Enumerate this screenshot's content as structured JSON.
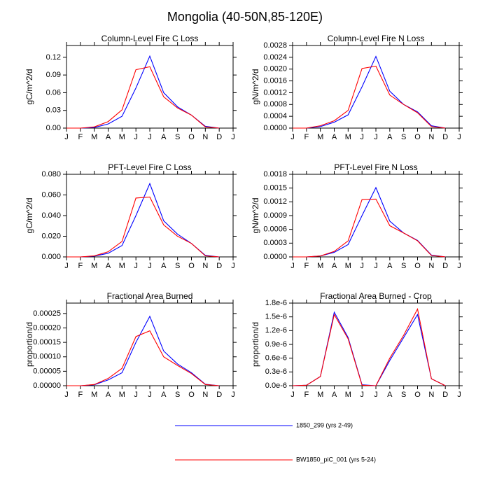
{
  "title": "Mongolia (40-50N,85-120E)",
  "legend": {
    "position": "bottom",
    "entries": [
      {
        "name": "1850_299 (yrs 2-49)",
        "color": "#0000ff"
      },
      {
        "name": "BW1850_piC_001 (yrs 5-24)",
        "color": "#ff0000"
      }
    ]
  },
  "chart_data": [
    {
      "type": "line",
      "title": "Column-Level Fire C Loss",
      "ylabel": "gC/m^2/d",
      "categories": [
        "J",
        "F",
        "M",
        "A",
        "M",
        "J",
        "J",
        "A",
        "S",
        "O",
        "N",
        "D",
        "J"
      ],
      "ylim": [
        0,
        0.14
      ],
      "yticks": [
        {
          "value": 0,
          "label": "0.00"
        },
        0.03,
        0.06,
        0.09,
        0.12
      ],
      "series": [
        {
          "color": "#0000ff",
          "values": [
            0,
            0,
            0.001,
            0.007,
            0.02,
            0.068,
            0.122,
            0.06,
            0.036,
            0.022,
            0.003,
            0,
            null
          ]
        },
        {
          "color": "#ff0000",
          "values": [
            0,
            0,
            0.002,
            0.011,
            0.031,
            0.099,
            0.104,
            0.053,
            0.034,
            0.022,
            0.002,
            0,
            null
          ]
        }
      ]
    },
    {
      "type": "line",
      "title": "Column-Level Fire N Loss",
      "ylabel": "gN/m^2/d",
      "categories": [
        "J",
        "F",
        "M",
        "A",
        "M",
        "J",
        "J",
        "A",
        "S",
        "O",
        "N",
        "D",
        "J"
      ],
      "ylim": [
        0,
        0.0028
      ],
      "yticks": [
        {
          "value": 0,
          "label": "0.0000"
        },
        0.0004,
        0.0008,
        0.0012,
        0.0016,
        {
          "value": 0.002,
          "label": "0.0020"
        },
        0.0024,
        0.0028
      ],
      "series": [
        {
          "color": "#0000ff",
          "values": [
            0,
            0,
            5e-05,
            0.0002,
            0.00045,
            0.0014,
            0.00243,
            0.00125,
            0.0008,
            0.00055,
            8e-05,
            0,
            null
          ]
        },
        {
          "color": "#ff0000",
          "values": [
            0,
            0,
            8e-05,
            0.00025,
            0.0006,
            0.00202,
            0.0021,
            0.00112,
            0.0008,
            0.00052,
            5e-05,
            0,
            null
          ]
        }
      ]
    },
    {
      "type": "line",
      "title": "PFT-Level Fire C Loss",
      "ylabel": "gC/m^2/d",
      "categories": [
        "J",
        "F",
        "M",
        "A",
        "M",
        "J",
        "J",
        "A",
        "S",
        "O",
        "N",
        "D",
        "J"
      ],
      "ylim": [
        0,
        0.08
      ],
      "yticks": [
        {
          "value": 0,
          "label": "0.000"
        },
        {
          "value": 0.02,
          "label": "0.020"
        },
        {
          "value": 0.04,
          "label": "0.040"
        },
        {
          "value": 0.06,
          "label": "0.060"
        },
        {
          "value": 0.08,
          "label": "0.080"
        }
      ],
      "series": [
        {
          "color": "#0000ff",
          "values": [
            0,
            0,
            0.0007,
            0.0035,
            0.011,
            0.04,
            0.071,
            0.035,
            0.022,
            0.013,
            0.0015,
            0,
            null
          ]
        },
        {
          "color": "#ff0000",
          "values": [
            0,
            0,
            0.001,
            0.005,
            0.015,
            0.057,
            0.058,
            0.031,
            0.02,
            0.013,
            0.001,
            0,
            null
          ]
        }
      ]
    },
    {
      "type": "line",
      "title": "PFT-Level Fire N Loss",
      "ylabel": "gN/m^2/d",
      "categories": [
        "J",
        "F",
        "M",
        "A",
        "M",
        "J",
        "J",
        "A",
        "S",
        "O",
        "N",
        "D",
        "J"
      ],
      "ylim": [
        0,
        0.0018
      ],
      "yticks": [
        {
          "value": 0,
          "label": "0.0000"
        },
        0.0003,
        0.0006,
        0.0009,
        0.0012,
        0.0015,
        0.0018
      ],
      "series": [
        {
          "color": "#0000ff",
          "values": [
            0,
            0,
            2e-05,
            0.0001,
            0.00027,
            0.0009,
            0.00151,
            0.00078,
            0.00052,
            0.00036,
            4e-05,
            0,
            null
          ]
        },
        {
          "color": "#ff0000",
          "values": [
            0,
            0,
            2e-05,
            0.00012,
            0.00035,
            0.00125,
            0.00126,
            0.00068,
            0.00052,
            0.00035,
            3e-05,
            0,
            null
          ]
        }
      ]
    },
    {
      "type": "line",
      "title": "Fractional Area Burned",
      "ylabel": "proportion/d",
      "categories": [
        "J",
        "F",
        "M",
        "A",
        "M",
        "J",
        "J",
        "A",
        "S",
        "O",
        "N",
        "D",
        "J"
      ],
      "ylim": [
        0,
        0.000286
      ],
      "yticks": [
        {
          "value": 0,
          "label": "0.00000"
        },
        5e-05,
        {
          "value": 0.0001,
          "label": "0.00010"
        },
        0.00015,
        {
          "value": 0.0002,
          "label": "0.00020"
        },
        0.00025
      ],
      "series": [
        {
          "color": "#0000ff",
          "values": [
            0,
            0,
            3e-06,
            2e-05,
            4.5e-05,
            0.00015,
            0.00024,
            0.00012,
            7.5e-05,
            4.5e-05,
            5e-06,
            0,
            null
          ]
        },
        {
          "color": "#ff0000",
          "values": [
            0,
            0,
            4e-06,
            2.5e-05,
            6e-05,
            0.00017,
            0.00019,
            0.0001,
            7e-05,
            4.2e-05,
            4e-06,
            0,
            null
          ]
        }
      ]
    },
    {
      "type": "line",
      "title": "Fractional Area Burned - Crop",
      "ylabel": "proportion/d",
      "categories": [
        "J",
        "F",
        "M",
        "A",
        "M",
        "J",
        "J",
        "A",
        "S",
        "O",
        "N",
        "D",
        "J"
      ],
      "ylim": [
        0,
        1.8e-06
      ],
      "yticks": [
        {
          "value": 0,
          "label": "0.0e-6"
        },
        {
          "value": 3e-07,
          "label": "0.3e-6"
        },
        {
          "value": 6e-07,
          "label": "0.6e-6"
        },
        {
          "value": 9e-07,
          "label": "0.9e-6"
        },
        {
          "value": 1.2e-06,
          "label": "1.2e-6"
        },
        {
          "value": 1.5e-06,
          "label": "1.5e-6"
        },
        {
          "value": 1.8e-06,
          "label": "1.8e-6"
        }
      ],
      "series": [
        {
          "color": "#0000ff",
          "values": [
            0,
            1e-08,
            2e-07,
            1.6e-06,
            1.05e-06,
            2e-08,
            0,
            5.5e-07,
            1.05e-06,
            1.55e-06,
            1.5e-07,
            0,
            null
          ]
        },
        {
          "color": "#ff0000",
          "values": [
            0,
            1e-08,
            2e-07,
            1.55e-06,
            1.02e-06,
            1e-08,
            0,
            6e-07,
            1.1e-06,
            1.67e-06,
            1.5e-07,
            0,
            null
          ]
        }
      ]
    }
  ]
}
